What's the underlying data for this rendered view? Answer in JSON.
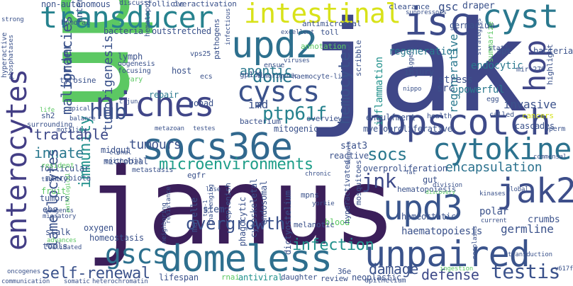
{
  "palette": {
    "dark_purple": "#3b1f5a",
    "indigo": "#3a4f8c",
    "blue": "#2f6f8e",
    "teal": "#23898e",
    "sea_green": "#2aa383",
    "green": "#47b86f",
    "lime": "#8bd646",
    "yellow": "#d5e21a"
  },
  "words": {
    "jak": "jak",
    "upd": "upd",
    "janus": "janus",
    "socs36e": "socs36e",
    "domeless": "domeless",
    "unpaired": "unpaired",
    "hopscotch": "hopscotch",
    "transducer": "transducer",
    "intestinal": "intestinal",
    "cyst": "cyst",
    "isc": "isc",
    "upd2": "upd2",
    "niches": "niches",
    "cyscs": "cyscs",
    "hop": "hop",
    "hub": "hub",
    "upd3": "upd3",
    "jak2": "jak2",
    "cytokine": "cytokine",
    "enterocytes": "enterocytes",
    "gscs": "gscs",
    "microenvironments": "microenvironments",
    "self_renewal": "self-renewal",
    "testis": "testis",
    "hemocytes": "hemocytes",
    "ptp61f": "ptp61f",
    "dome": "dome",
    "jnk": "jnk",
    "socs": "socs",
    "encapsulation": "encapsulation",
    "overgrowth": "overgrowth",
    "immunity": "immunity",
    "tractable": "tractable",
    "innate": "innate",
    "tumours": "tumours",
    "lamellocytes": "lamellocytes",
    "malignancies": "malignancies",
    "infection": "infection",
    "damage": "damage",
    "defense": "defense",
    "germline": "germline",
    "gsc": "gsc",
    "draper": "draper",
    "apontic": "apontic",
    "border": "border",
    "tumorigenesis": "tumorigenesis",
    "regeneration": "regeneration",
    "regenerative": "regenerative",
    "inflammation": "inflammation",
    "endocytic": "endocytic",
    "invasive": "invasive",
    "stress": "stress",
    "src": "src",
    "powerful": "powerful",
    "haematopoiesis": "haematopoiesis",
    "homeostatic": "homeostatic",
    "polar": "polar",
    "crumbs": "crumbs",
    "imd": "imd",
    "stat3": "stat3",
    "mitogenic": "mitogenic",
    "myeloproliferative": "myeloproliferative",
    "engulfment": "engulfment",
    "injury": "injury",
    "gut": "gut",
    "hematopoiesis": "hematopoiesis",
    "overproliferation": "overproliferation",
    "reactive": "reactive",
    "cascades": "cascades",
    "cancers": "cancers",
    "bacterial": "bacterial",
    "apt": "apt",
    "germarium": "germarium",
    "clearance": "clearance",
    "gonad": "gonad",
    "repair": "repair",
    "midgut": "midgut",
    "microbial": "microbial",
    "follicular": "follicular",
    "fruit": "fruit",
    "tumors": "tumors",
    "ebs": "ebs",
    "stalk": "stalk",
    "tools": "tools",
    "homeostasis": "homeostasis",
    "oxygen": "oxygen",
    "stem": "stem",
    "marelle": "marelle",
    "phagocytic": "phagocytic",
    "cytoskeletal": "cytoskeletal",
    "endosomal": "endosomal",
    "dictyostelium": "dictyostelium",
    "blood": "blood",
    "melanotic": "melanotic",
    "replenish": "replenish",
    "lifespan": "lifespan",
    "antiviral": "antiviral",
    "rnai": "rnai",
    "daughter": "daughter",
    "review": "review",
    "neoplastic": "neoplastic",
    "epithelium": "epithelium",
    "mosquitoes": "mosquitoes",
    "hyperactivated": "hyperactivated",
    "bacteria": "bacteria",
    "outstretched": "outstretched",
    "hematopoietic": "hematopoietic",
    "host": "host",
    "enteroblasts": "enteroblasts",
    "lymph": "lymph",
    "pathogens": "pathogens",
    "bacterium": "bacterium",
    "gp130": "gp130",
    "scribble": "scribble",
    "annotation": "annotation",
    "antimicrobial": "antimicrobial",
    "toll": "toll",
    "non_autonomous": "non-autonomous",
    "follicle": "follicle",
    "overactivation": "overactivation",
    "tyrosine": "tyrosine",
    "microbiota": "microbiota",
    "metastasis": "metastasis",
    "egfr": "egfr",
    "mpns": "mpns",
    "summarize": "summarize",
    "highlight": "highlight",
    "sh2": "sh2",
    "overview": "overview",
    "surrounding": "surrounding",
    "ensue": "ensue",
    "stat1": "stat1",
    "mir_279": "mir-279",
    "hyperactive": "hyperactive",
    "humoral": "humoral",
    "discuss": "discuss",
    "excellent": "excellent",
    "phosphatases": "phosphatases",
    "oogenesis": "oogenesis",
    "focusing": "focusing",
    "ovary": "ovary",
    "vps25": "vps25",
    "ecs": "ecs",
    "infectious": "infectious",
    "viruses": "viruses",
    "tumorigenic": "tumorigenic",
    "haemocyte_like": "haemocyte-like",
    "nippo": "nippo",
    "egg": "egg",
    "health": "health",
    "called": "called",
    "sperm": "sperm",
    "strategies": "strategies",
    "triggers": "triggers",
    "suppressors": "suppressors",
    "c_jun": "c-jun",
    "life": "life",
    "apical": "apical",
    "balance": "balance",
    "metazoan": "metazoan",
    "testes": "testes",
    "motility": "motility",
    "clonal": "clonal",
    "epithelial": "epithelial",
    "resident": "resident",
    "tightly": "tightly",
    "migratory": "migratory",
    "advances": "advances",
    "validated": "validated",
    "oncogenes": "oncogenes",
    "communication": "communication",
    "somatic": "somatic",
    "heterochromatin": "heterochromatin",
    "pathological": "pathological",
    "resistance": "resistance",
    "challenging": "challenging",
    "lose": "lose",
    "tum_1": "tum-1",
    "neighboring": "neighboring",
    "yorkie": "yorkie",
    "chronic": "chronic",
    "division": "division",
    "discovery": "discovery",
    "fat": "fat",
    "commensal": "commensal",
    "kinases": "kinases",
    "global": "global",
    "current": "current",
    "neoplasms": "neoplasms",
    "transduction": "transduction",
    "v617f": "v617f",
    "ingestion": "ingestion",
    "mammals": "mammals",
    "strong": "strong",
    "36e": "36e",
    "reagents": "reagents"
  }
}
